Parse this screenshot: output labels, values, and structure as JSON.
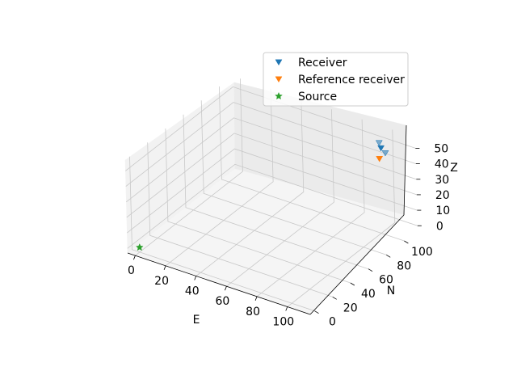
{
  "chart_data": {
    "type": "scatter",
    "projection": "3d",
    "title": "",
    "xlabel": "E",
    "ylabel": "N",
    "zlabel": "Z",
    "xlim": [
      -5,
      115
    ],
    "ylim": [
      -5,
      115
    ],
    "zlim": [
      -3,
      57
    ],
    "xticks": [
      "0",
      "20",
      "40",
      "60",
      "80",
      "100"
    ],
    "yticks": [
      "0",
      "20",
      "40",
      "60",
      "80",
      "100"
    ],
    "zticks": [
      "0",
      "10",
      "20",
      "30",
      "40",
      "50"
    ],
    "grid": true,
    "legend_position": "top-right",
    "series": [
      {
        "name": "Receiver",
        "marker": "triangle-down",
        "color": "#1f77b4",
        "points": [
          {
            "x": 97,
            "y": 105,
            "z": 52
          },
          {
            "x": 100,
            "y": 102,
            "z": 51
          },
          {
            "x": 104,
            "y": 100,
            "z": 50
          }
        ]
      },
      {
        "name": "Reference receiver",
        "marker": "triangle-down",
        "color": "#ff7f0e",
        "points": [
          {
            "x": 100,
            "y": 100,
            "z": 45
          }
        ]
      },
      {
        "name": "Source",
        "marker": "star",
        "color": "#2ca02c",
        "points": [
          {
            "x": 0,
            "y": 0,
            "z": 0
          }
        ]
      }
    ]
  }
}
